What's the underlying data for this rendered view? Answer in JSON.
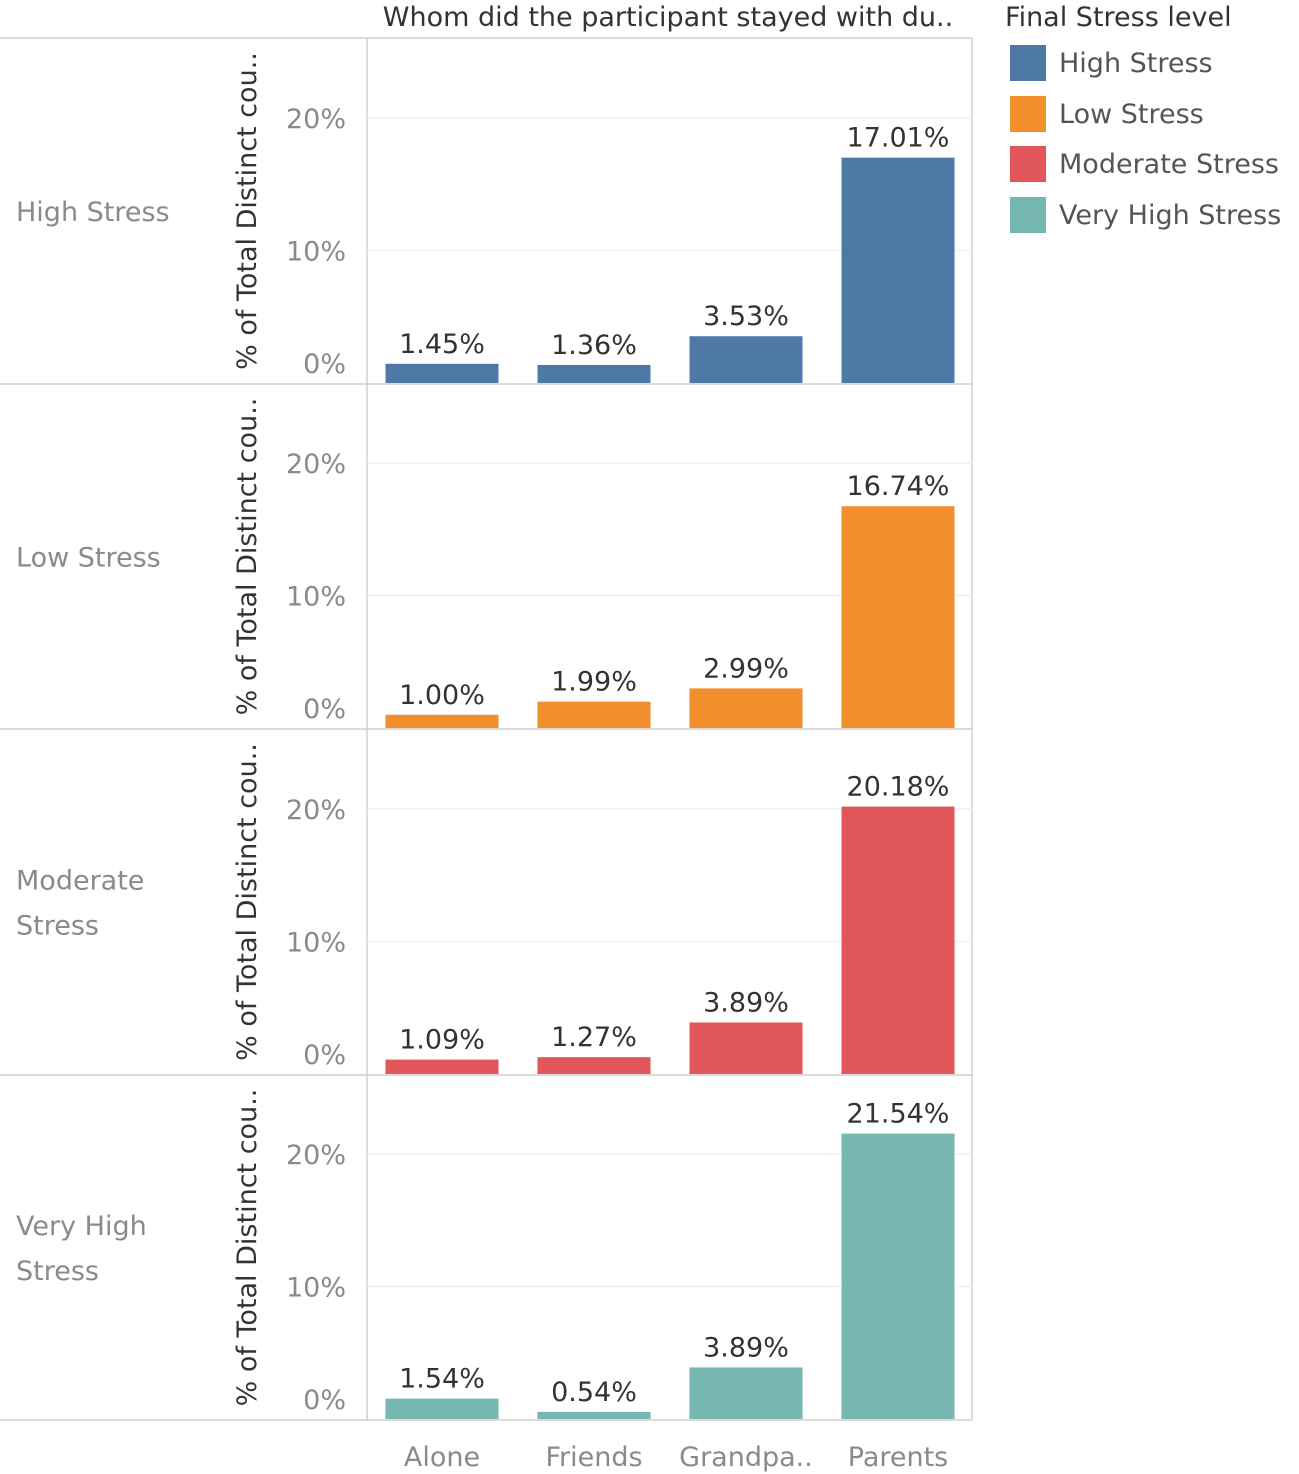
{
  "chart_data": {
    "type": "bar",
    "column_header": "Whom did the participant stayed with du..",
    "ylabel": "% of Total Distinct cou..",
    "yticks": [
      "0%",
      "10%",
      "20%"
    ],
    "ylim": [
      0,
      25
    ],
    "grid": true,
    "legend_placement": "top-right",
    "categories": [
      "Alone",
      "Friends",
      "Grandpa..",
      "Parents"
    ],
    "legend": {
      "title": "Final Stress level",
      "items": [
        {
          "label": "High Stress",
          "color": "#4e79a7"
        },
        {
          "label": "Low Stress",
          "color": "#f28e2b"
        },
        {
          "label": "Moderate Stress",
          "color": "#e15759"
        },
        {
          "label": "Very High Stress",
          "color": "#76b7b2"
        }
      ]
    },
    "panels": [
      {
        "row_label": [
          "High Stress"
        ],
        "color": "#4e79a7",
        "values": [
          1.45,
          1.36,
          3.53,
          17.01
        ],
        "labels": [
          "1.45%",
          "1.36%",
          "3.53%",
          "17.01%"
        ]
      },
      {
        "row_label": [
          "Low Stress"
        ],
        "color": "#f28e2b",
        "values": [
          1.0,
          1.99,
          2.99,
          16.74
        ],
        "labels": [
          "1.00%",
          "1.99%",
          "2.99%",
          "16.74%"
        ]
      },
      {
        "row_label": [
          "Moderate",
          "Stress"
        ],
        "color": "#e15759",
        "values": [
          1.09,
          1.27,
          3.89,
          20.18
        ],
        "labels": [
          "1.09%",
          "1.27%",
          "3.89%",
          "20.18%"
        ]
      },
      {
        "row_label": [
          "Very High",
          "Stress"
        ],
        "color": "#76b7b2",
        "values": [
          1.54,
          0.54,
          3.89,
          21.54
        ],
        "labels": [
          "1.54%",
          "0.54%",
          "3.89%",
          "21.54%"
        ]
      }
    ]
  }
}
